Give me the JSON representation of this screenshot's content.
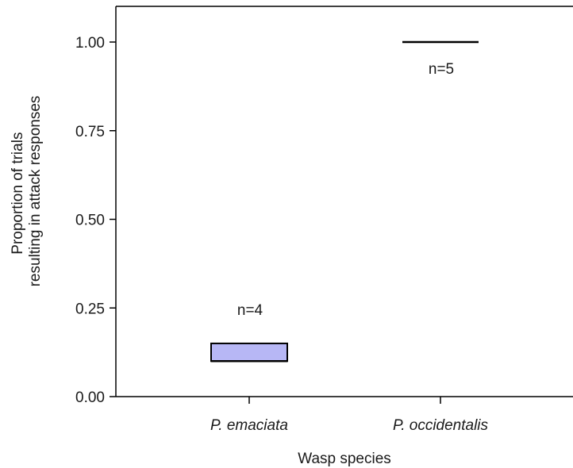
{
  "chart_data": {
    "type": "box",
    "categories": [
      "P. emaciata",
      "P. occidentalis"
    ],
    "series": [
      {
        "boxes": [
          {
            "category": "P. emaciata",
            "q1": 0.1,
            "median": 0.1,
            "q3": 0.15,
            "n_label": "n=4"
          },
          {
            "category": "P. occidentalis",
            "q1": 1.0,
            "median": 1.0,
            "q3": 1.0,
            "n_label": "n=5"
          }
        ]
      }
    ],
    "xlabel": "Wasp species",
    "ylabel_lines": [
      "Proportion of trials",
      "resulting in attack responses"
    ],
    "ylim": [
      0,
      1.1
    ],
    "yticks": [
      0.0,
      0.25,
      0.5,
      0.75,
      1.0
    ],
    "ytick_labels": [
      "0.00",
      "0.25",
      "0.50",
      "0.75",
      "1.00"
    ],
    "box_fill": "#b7b7f5",
    "line_color": "#000000",
    "grid": false
  }
}
